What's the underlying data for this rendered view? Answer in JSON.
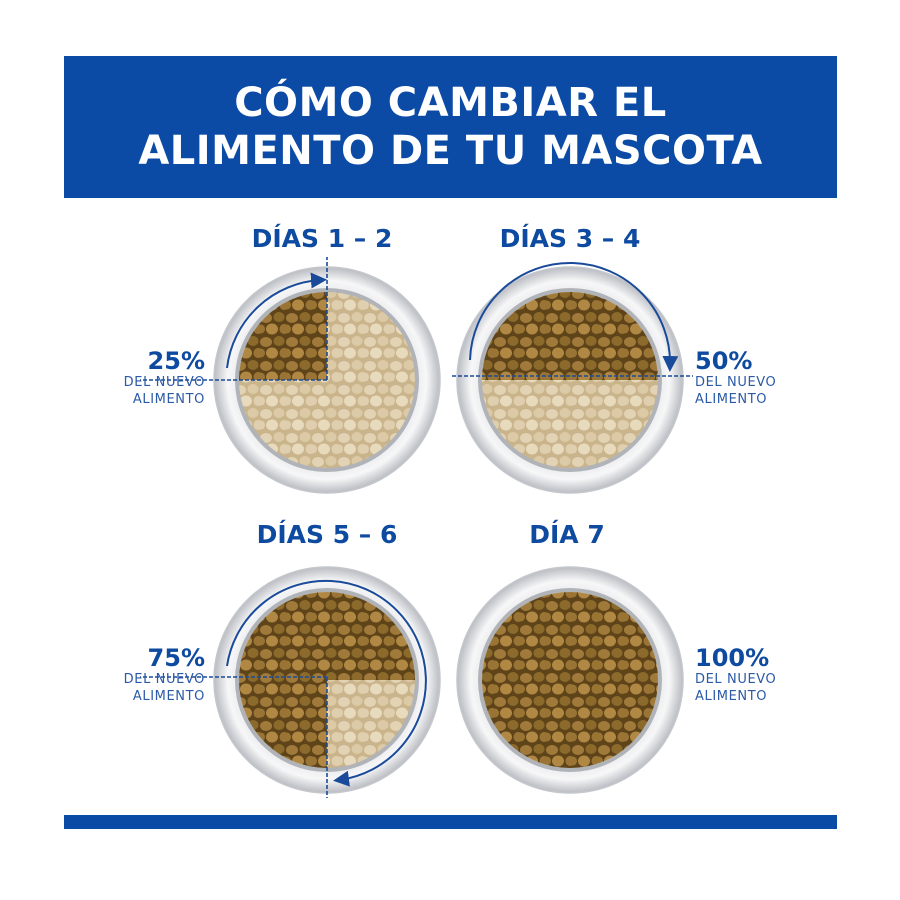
{
  "title": {
    "line1": "CÓMO CAMBIAR EL",
    "line2": "ALIMENTO DE TU MASCOTA"
  },
  "colors": {
    "brand_blue": "#0b4ba6",
    "new_food": "#8a6a30",
    "old_food": "#d8c7a4"
  },
  "steps": [
    {
      "heading": "DÍAS 1 – 2",
      "percent_label": "25%",
      "percent": 25,
      "line1": "DEL NUEVO",
      "line2": "ALIMENTO"
    },
    {
      "heading": "DÍAS 3 – 4",
      "percent_label": "50%",
      "percent": 50,
      "line1": "DEL NUEVO",
      "line2": "ALIMENTO"
    },
    {
      "heading": "DÍAS 5 – 6",
      "percent_label": "75%",
      "percent": 75,
      "line1": "DEL NUEVO",
      "line2": "ALIMENTO"
    },
    {
      "heading": "DÍA 7",
      "percent_label": "100%",
      "percent": 100,
      "line1": "DEL NUEVO",
      "line2": "ALIMENTO"
    }
  ]
}
